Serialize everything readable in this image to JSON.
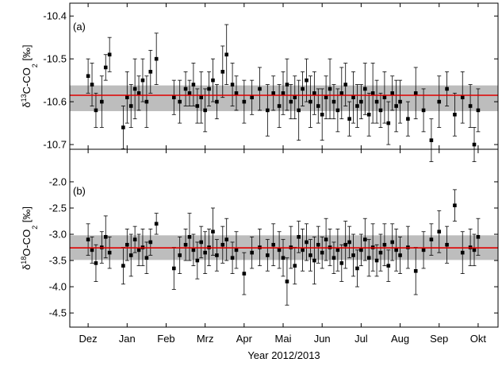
{
  "chart_data": [
    {
      "type": "scatter",
      "panel_label": "(a)",
      "ylabel": [
        "δ",
        "13",
        "C-CO",
        "2",
        " [‰]"
      ],
      "xlim": [
        -0.47,
        10.51
      ],
      "ylim": [
        -10.711,
        -10.37
      ],
      "yticks": [
        -10.4,
        -10.5,
        -10.6,
        -10.7
      ],
      "color": "#000000",
      "x": [
        0.0,
        0.1,
        0.2,
        0.35,
        0.45,
        0.55,
        0.9,
        1.0,
        1.1,
        1.2,
        1.3,
        1.4,
        1.5,
        1.6,
        1.75,
        2.2,
        2.35,
        2.5,
        2.6,
        2.7,
        2.8,
        2.9,
        3.0,
        3.1,
        3.2,
        3.3,
        3.45,
        3.55,
        3.7,
        3.8,
        4.0,
        4.2,
        4.4,
        4.6,
        4.75,
        4.9,
        5.0,
        5.1,
        5.2,
        5.3,
        5.4,
        5.5,
        5.6,
        5.7,
        5.8,
        5.9,
        6.0,
        6.1,
        6.2,
        6.3,
        6.4,
        6.5,
        6.6,
        6.7,
        6.8,
        6.9,
        7.0,
        7.1,
        7.2,
        7.3,
        7.4,
        7.5,
        7.6,
        7.7,
        7.8,
        7.9,
        8.0,
        8.2,
        8.4,
        8.6,
        8.8,
        9.0,
        9.2,
        9.4,
        9.6,
        9.8,
        9.9,
        10.0
      ],
      "values": [
        -10.54,
        -10.56,
        -10.62,
        -10.6,
        -10.52,
        -10.49,
        -10.66,
        -10.59,
        -10.61,
        -10.57,
        -10.58,
        -10.55,
        -10.6,
        -10.53,
        -10.5,
        -10.59,
        -10.6,
        -10.57,
        -10.58,
        -10.56,
        -10.61,
        -10.59,
        -10.62,
        -10.57,
        -10.55,
        -10.6,
        -10.53,
        -10.49,
        -10.56,
        -10.58,
        -10.6,
        -10.59,
        -10.57,
        -10.62,
        -10.58,
        -10.61,
        -10.58,
        -10.56,
        -10.6,
        -10.59,
        -10.62,
        -10.57,
        -10.55,
        -10.6,
        -10.58,
        -10.61,
        -10.63,
        -10.59,
        -10.57,
        -10.6,
        -10.62,
        -10.58,
        -10.56,
        -10.64,
        -10.59,
        -10.61,
        -10.6,
        -10.57,
        -10.63,
        -10.58,
        -10.6,
        -10.62,
        -10.59,
        -10.65,
        -10.58,
        -10.61,
        -10.6,
        -10.64,
        -10.58,
        -10.62,
        -10.69,
        -10.6,
        -10.57,
        -10.63,
        -10.59,
        -10.61,
        -10.7,
        -10.62
      ],
      "errors": [
        0.04,
        0.05,
        0.04,
        0.06,
        0.03,
        0.04,
        0.05,
        0.06,
        0.05,
        0.07,
        0.04,
        0.05,
        0.06,
        0.05,
        0.06,
        0.04,
        0.05,
        0.04,
        0.03,
        0.05,
        0.04,
        0.06,
        0.05,
        0.04,
        0.05,
        0.04,
        0.06,
        0.07,
        0.05,
        0.04,
        0.05,
        0.04,
        0.05,
        0.06,
        0.04,
        0.05,
        0.05,
        0.06,
        0.04,
        0.05,
        0.07,
        0.04,
        0.05,
        0.06,
        0.05,
        0.04,
        0.06,
        0.05,
        0.07,
        0.04,
        0.05,
        0.06,
        0.05,
        0.04,
        0.06,
        0.05,
        0.04,
        0.06,
        0.05,
        0.07,
        0.05,
        0.04,
        0.06,
        0.05,
        0.04,
        0.06,
        0.05,
        0.04,
        0.06,
        0.05,
        0.05,
        0.06,
        0.04,
        0.05,
        0.06,
        0.05,
        0.04,
        0.05
      ],
      "reference": {
        "value": -10.585,
        "band": [
          -10.622,
          -10.562
        ],
        "color": "#e00000",
        "band_color": "#bdbdbd"
      }
    },
    {
      "type": "scatter",
      "panel_label": "(b)",
      "ylabel": [
        "δ",
        "18",
        "O-CO",
        "2",
        " [‰]"
      ],
      "xlabel": "Year 2012/2013",
      "xlim": [
        -0.47,
        10.51
      ],
      "ylim": [
        -4.77,
        -1.38
      ],
      "xticks": [
        {
          "value": 0,
          "label": "Dez"
        },
        {
          "value": 1,
          "label": "Jan"
        },
        {
          "value": 2,
          "label": "Feb"
        },
        {
          "value": 3,
          "label": "Mrz"
        },
        {
          "value": 4,
          "label": "Apr"
        },
        {
          "value": 5,
          "label": "Mai"
        },
        {
          "value": 6,
          "label": "Jun"
        },
        {
          "value": 7,
          "label": "Jul"
        },
        {
          "value": 8,
          "label": "Aug"
        },
        {
          "value": 9,
          "label": "Sep"
        },
        {
          "value": 10,
          "label": "Okt"
        }
      ],
      "yticks": [
        {
          "value": -2.0,
          "label": "-2.0"
        },
        -2.5,
        {
          "value": -3.0,
          "label": "-3.0"
        },
        -3.5,
        {
          "value": -4.0,
          "label": "-4.0"
        },
        -4.5
      ],
      "color": "#000000",
      "x": [
        0.0,
        0.1,
        0.2,
        0.35,
        0.45,
        0.55,
        0.9,
        1.0,
        1.1,
        1.2,
        1.3,
        1.4,
        1.5,
        1.6,
        1.75,
        2.2,
        2.35,
        2.5,
        2.6,
        2.7,
        2.8,
        2.9,
        3.0,
        3.1,
        3.2,
        3.3,
        3.45,
        3.55,
        3.7,
        3.8,
        4.0,
        4.2,
        4.4,
        4.6,
        4.75,
        4.9,
        5.0,
        5.1,
        5.2,
        5.3,
        5.4,
        5.5,
        5.6,
        5.7,
        5.8,
        5.9,
        6.0,
        6.1,
        6.2,
        6.3,
        6.4,
        6.5,
        6.6,
        6.7,
        6.8,
        6.9,
        7.0,
        7.1,
        7.2,
        7.3,
        7.4,
        7.5,
        7.6,
        7.7,
        7.8,
        7.9,
        8.0,
        8.2,
        8.4,
        8.6,
        8.8,
        9.0,
        9.2,
        9.4,
        9.6,
        9.8,
        9.9,
        10.0
      ],
      "values": [
        -3.1,
        -3.3,
        -3.55,
        -3.25,
        -3.05,
        -3.35,
        -3.6,
        -3.2,
        -3.4,
        -3.1,
        -3.3,
        -3.25,
        -3.45,
        -3.15,
        -2.8,
        -3.65,
        -3.4,
        -3.2,
        -3.05,
        -3.3,
        -3.5,
        -3.15,
        -3.35,
        -3.25,
        -2.95,
        -3.4,
        -3.2,
        -3.1,
        -3.45,
        -3.3,
        -3.75,
        -3.35,
        -3.25,
        -3.4,
        -3.2,
        -3.3,
        -3.45,
        -3.9,
        -3.25,
        -3.6,
        -3.05,
        -3.3,
        -3.15,
        -3.4,
        -3.5,
        -3.2,
        -3.35,
        -3.1,
        -3.25,
        -3.45,
        -3.3,
        -3.55,
        -3.2,
        -3.15,
        -3.4,
        -3.65,
        -3.3,
        -3.1,
        -3.45,
        -3.25,
        -3.5,
        -3.35,
        -3.2,
        -3.6,
        -3.15,
        -3.3,
        -3.4,
        -3.25,
        -3.7,
        -3.3,
        -3.1,
        -2.95,
        -3.2,
        -2.45,
        -3.35,
        -3.25,
        -3.3,
        -3.05
      ],
      "errors": [
        0.3,
        0.25,
        0.35,
        0.3,
        0.4,
        0.3,
        0.35,
        0.3,
        0.4,
        0.25,
        0.3,
        0.35,
        0.3,
        0.25,
        0.2,
        0.4,
        0.35,
        0.3,
        0.45,
        0.3,
        0.35,
        0.3,
        0.4,
        0.35,
        0.45,
        0.3,
        0.35,
        0.4,
        0.3,
        0.35,
        0.4,
        0.3,
        0.35,
        0.3,
        0.4,
        0.35,
        0.35,
        0.45,
        0.4,
        0.35,
        0.3,
        0.4,
        0.35,
        0.3,
        0.45,
        0.35,
        0.3,
        0.4,
        0.35,
        0.3,
        0.4,
        0.35,
        0.45,
        0.3,
        0.4,
        0.35,
        0.3,
        0.4,
        0.35,
        0.45,
        0.3,
        0.35,
        0.4,
        0.3,
        0.35,
        0.4,
        0.35,
        0.4,
        0.45,
        0.35,
        0.3,
        0.4,
        0.35,
        0.3,
        0.4,
        0.35,
        0.3,
        0.35
      ],
      "reference": {
        "value": -3.26,
        "band": [
          -3.49,
          -3.02
        ],
        "color": "#e00000",
        "band_color": "#bdbdbd"
      }
    }
  ]
}
